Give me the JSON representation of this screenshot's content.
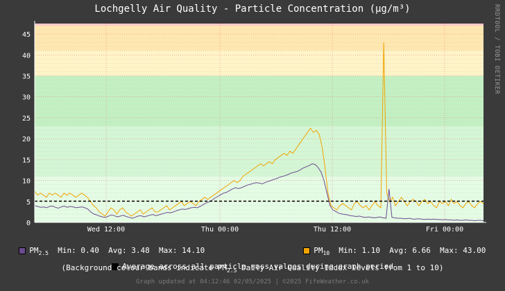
{
  "title": "Lochgelly Air Quality - Particle Concentration (µg/m³)",
  "watermark": "RRDTOOL / TOBI OETIKER",
  "legend": {
    "pm25": {
      "label_main": "PM",
      "label_sub": "2.5",
      "min_label": "Min:",
      "min": "0.40",
      "avg_label": "Avg:",
      "avg": "3.48",
      "max_label": "Max:",
      "max": "14.10",
      "color": "#6b4a8e"
    },
    "pm10": {
      "label_main": "PM",
      "label_sub": "10",
      "min_label": "Min:",
      "min": "1.10",
      "avg_label": "Avg:",
      "avg": "6.66",
      "max_label": "Max:",
      "max": "43.00",
      "color": "#f2a400"
    },
    "avg_line": "Average across all particle mass values during graph period",
    "bands_note_prefix": "(Background colour bands indicate PM",
    "bands_note_sub": "2.5",
    "bands_note_suffix": " Daily Air Quality Index levels from 1 to 10)"
  },
  "footer": "Graph updated at 04:12:46 02/05/2025 | ©2025 FifeWeather.co.uk",
  "chart_data": {
    "type": "line",
    "ylim": [
      0,
      47.5
    ],
    "y_ticks": [
      0,
      5,
      10,
      15,
      20,
      25,
      30,
      35,
      40,
      45
    ],
    "x_tick_labels": [
      "Wed 12:00",
      "Thu 00:00",
      "Thu 12:00",
      "Fri 00:00"
    ],
    "average_line": 5.07,
    "bands": [
      {
        "from": 0,
        "to": 11,
        "color": "#e4fbe4"
      },
      {
        "from": 11,
        "to": 23,
        "color": "#d4f6d4"
      },
      {
        "from": 23,
        "to": 35,
        "color": "#c3f0c3"
      },
      {
        "from": 35,
        "to": 41,
        "color": "#fff4c8"
      },
      {
        "from": 41,
        "to": 47,
        "color": "#ffe7b0"
      },
      {
        "from": 47,
        "to": 47.5,
        "color": "#ffc8c8"
      }
    ],
    "series": [
      {
        "name": "PM10",
        "color": "#f2a400",
        "values": [
          7.5,
          6.5,
          7,
          6.5,
          6,
          7,
          6.5,
          7,
          6.5,
          6,
          7,
          6.5,
          7,
          6.5,
          6,
          6.5,
          7,
          6.5,
          6,
          5,
          4,
          3.5,
          2.5,
          2,
          1.5,
          2.5,
          3.5,
          3,
          2,
          3,
          3.5,
          2.5,
          2,
          1.5,
          2,
          2.5,
          3,
          2,
          2.5,
          3,
          3.5,
          2.5,
          2.5,
          3,
          3.5,
          4,
          3,
          3.5,
          4,
          4.5,
          5,
          4,
          4.5,
          5,
          4.5,
          4,
          5,
          5.5,
          6,
          5.5,
          6,
          6.5,
          7,
          7.5,
          8,
          8.5,
          9,
          9.5,
          10,
          9.5,
          10,
          11,
          11.5,
          12,
          12.5,
          13,
          13.5,
          14,
          13.5,
          14,
          14.5,
          14,
          15,
          15.5,
          16,
          16.5,
          16,
          17,
          16.5,
          17.5,
          18.5,
          19.5,
          20.5,
          21.5,
          22.5,
          21.5,
          22,
          21,
          18,
          13,
          7,
          4,
          3.5,
          3,
          4,
          4.5,
          4,
          3.5,
          3,
          4.5,
          5,
          4,
          3.5,
          4,
          3,
          4,
          5,
          4,
          3.5,
          43,
          7,
          5,
          6,
          4,
          5,
          6,
          5,
          4,
          5,
          5.5,
          5,
          4,
          5,
          5.5,
          4.5,
          5,
          4,
          3.5,
          5,
          4.5,
          5,
          4,
          5.5,
          4.5,
          5,
          4,
          3.5,
          4.5,
          5,
          4,
          3.5,
          4.5,
          5,
          4.5
        ]
      },
      {
        "name": "PM2.5",
        "color": "#6b4a8e",
        "values": [
          4,
          3.8,
          3.6,
          3.7,
          3.5,
          3.8,
          3.9,
          3.6,
          3.4,
          3.7,
          3.9,
          3.6,
          3.8,
          3.7,
          3.5,
          3.6,
          3.7,
          3.5,
          3.2,
          2.5,
          2,
          1.8,
          1.5,
          1.3,
          1.2,
          1.5,
          1.8,
          1.6,
          1.3,
          1.5,
          1.7,
          1.4,
          1.2,
          1,
          1.2,
          1.5,
          1.6,
          1.3,
          1.5,
          1.7,
          1.9,
          1.6,
          1.8,
          2,
          2.2,
          2.4,
          2.3,
          2.5,
          2.8,
          3,
          3.2,
          3.1,
          3.3,
          3.5,
          3.6,
          3.5,
          3.8,
          4.2,
          4.6,
          4.9,
          5.3,
          5.8,
          6.2,
          6.6,
          7,
          7.2,
          7.6,
          8,
          8.3,
          8.1,
          8.3,
          8.6,
          8.9,
          9.1,
          9.3,
          9.5,
          9.4,
          9.2,
          9.5,
          9.8,
          10,
          10.3,
          10.5,
          10.8,
          11,
          11.2,
          11.5,
          11.8,
          12,
          12.2,
          12.6,
          13,
          13.3,
          13.6,
          14,
          13.8,
          13.1,
          12,
          10,
          7,
          4,
          3,
          2.6,
          2.2,
          2,
          1.9,
          1.8,
          1.6,
          1.5,
          1.4,
          1.5,
          1.3,
          1.2,
          1.3,
          1.2,
          1.1,
          1.2,
          1.3,
          1.1,
          1,
          8,
          1.2,
          1.1,
          1,
          1,
          0.9,
          0.9,
          1,
          0.8,
          0.8,
          0.9,
          0.8,
          0.7,
          0.8,
          0.7,
          0.8,
          0.7,
          0.7,
          0.6,
          0.7,
          0.6,
          0.6,
          0.5,
          0.6,
          0.5,
          0.5,
          0.6,
          0.5,
          0.5,
          0.4,
          0.5,
          0.5,
          0.4
        ]
      }
    ]
  }
}
